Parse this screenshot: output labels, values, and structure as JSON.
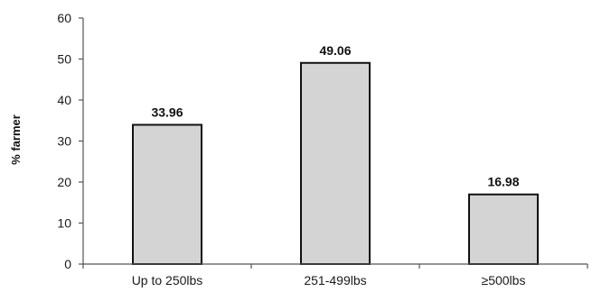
{
  "chart_data": {
    "type": "bar",
    "categories": [
      "Up to 250lbs",
      "251-499lbs",
      "≥500lbs"
    ],
    "values": [
      33.96,
      49.06,
      16.98
    ],
    "data_labels": [
      "33.96",
      "49.06",
      "16.98"
    ],
    "title": "",
    "xlabel": "",
    "ylabel": "% farmer",
    "ylim": [
      0,
      60
    ],
    "yticks": [
      0,
      10,
      20,
      30,
      40,
      50,
      60
    ],
    "grid": false,
    "legend": "none",
    "colors": {
      "bar_fill": "#d4d4d4",
      "bar_stroke": "#111111",
      "axis": "#555555"
    }
  }
}
